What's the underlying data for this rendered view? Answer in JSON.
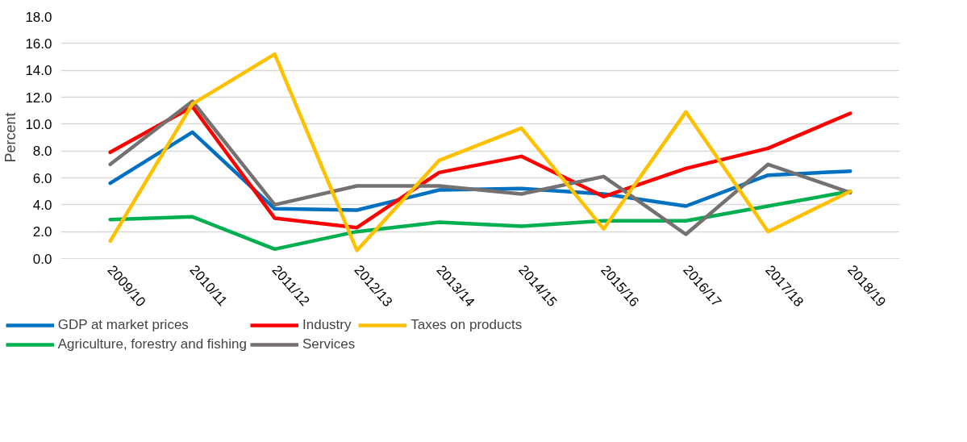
{
  "chart_data": {
    "type": "line",
    "ylabel": "Percent",
    "categories": [
      "2009/10",
      "2010/11",
      "2011/12",
      "2012/13",
      "2013/14",
      "2014/15",
      "2015/16",
      "2016/17",
      "2017/18",
      "2018/19"
    ],
    "series": [
      {
        "name": "GDP at market prices",
        "color": "#0070c0",
        "values": [
          5.6,
          9.4,
          3.7,
          3.6,
          5.1,
          5.2,
          4.8,
          3.9,
          6.2,
          6.5
        ]
      },
      {
        "name": "Agriculture, forestry and fishing",
        "color": "#00b050",
        "values": [
          2.9,
          3.1,
          0.7,
          2.0,
          2.7,
          2.4,
          2.8,
          2.8,
          3.9,
          5.0
        ]
      },
      {
        "name": "Industry",
        "color": "#ff0000",
        "values": [
          7.9,
          11.3,
          3.0,
          2.3,
          6.4,
          7.6,
          4.6,
          6.7,
          8.2,
          10.8
        ]
      },
      {
        "name": "Services",
        "color": "#767171",
        "values": [
          7.0,
          11.7,
          4.0,
          5.4,
          5.4,
          4.8,
          6.1,
          1.8,
          7.0,
          4.9
        ]
      },
      {
        "name": "Taxes on products",
        "color": "#ffc000",
        "values": [
          1.3,
          11.5,
          15.2,
          0.6,
          7.3,
          9.7,
          2.2,
          10.9,
          2.0,
          5.0
        ]
      }
    ],
    "ylim": [
      0,
      18
    ],
    "yticks": [
      {
        "value": 0,
        "label": "0.0"
      },
      {
        "value": 2,
        "label": "2.0"
      },
      {
        "value": 4,
        "label": "4.0"
      },
      {
        "value": 6,
        "label": "6.0"
      },
      {
        "value": 8,
        "label": "8.0"
      },
      {
        "value": 10,
        "label": "10.0"
      },
      {
        "value": 12,
        "label": "12.0"
      },
      {
        "value": 14,
        "label": "14.0"
      },
      {
        "value": 16,
        "label": "16.0"
      },
      {
        "value": 18,
        "label": "18.0"
      }
    ],
    "grid": "y",
    "legend": "bottom",
    "marker": "none",
    "line_style": "solid"
  }
}
